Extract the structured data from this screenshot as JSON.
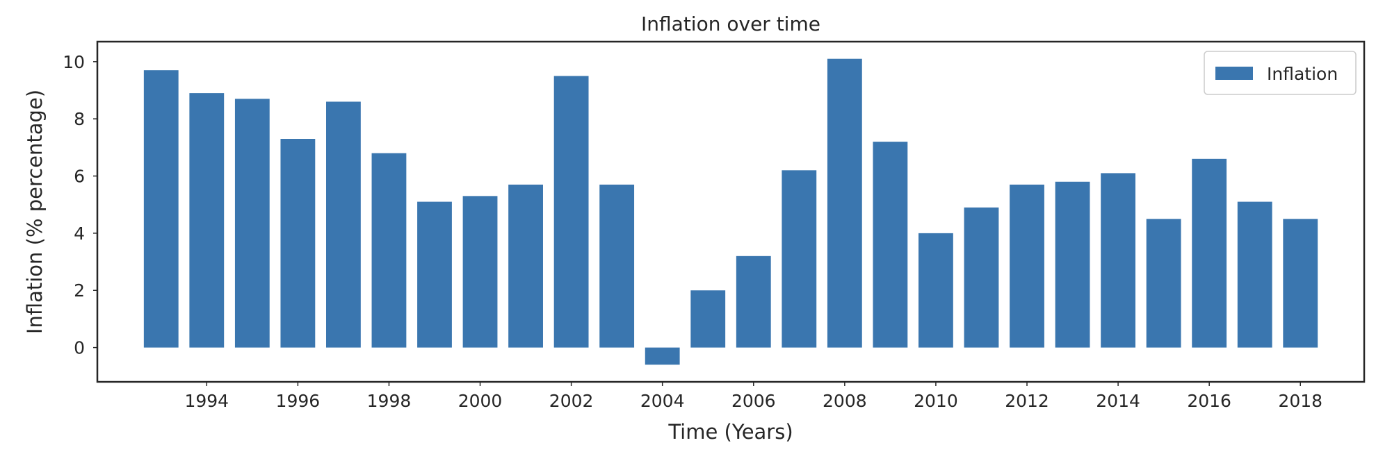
{
  "chart_data": {
    "type": "bar",
    "title": "Inflation over time",
    "xlabel": "Time (Years)",
    "ylabel": "Inflation (% percentage)",
    "x": [
      1993,
      1994,
      1995,
      1996,
      1997,
      1998,
      1999,
      2000,
      2001,
      2002,
      2003,
      2004,
      2005,
      2006,
      2007,
      2008,
      2009,
      2010,
      2011,
      2012,
      2013,
      2014,
      2015,
      2016,
      2017,
      2018
    ],
    "series": [
      {
        "name": "Inflation",
        "color": "#3a76af",
        "values": [
          9.7,
          8.9,
          8.7,
          7.3,
          8.6,
          6.8,
          5.1,
          5.3,
          5.7,
          9.5,
          5.7,
          -0.6,
          2.0,
          3.2,
          6.2,
          10.1,
          7.2,
          4.0,
          4.9,
          5.7,
          5.8,
          6.1,
          4.5,
          6.6,
          5.1,
          4.5
        ]
      }
    ],
    "xticks": [
      1994,
      1996,
      1998,
      2000,
      2002,
      2004,
      2006,
      2008,
      2010,
      2012,
      2014,
      2016,
      2018
    ],
    "yticks": [
      0,
      2,
      4,
      6,
      8,
      10
    ],
    "xlim": [
      1991.6,
      2019.4
    ],
    "ylim": [
      -1.2,
      10.7
    ],
    "grid": false,
    "legend_position": "top-right"
  }
}
